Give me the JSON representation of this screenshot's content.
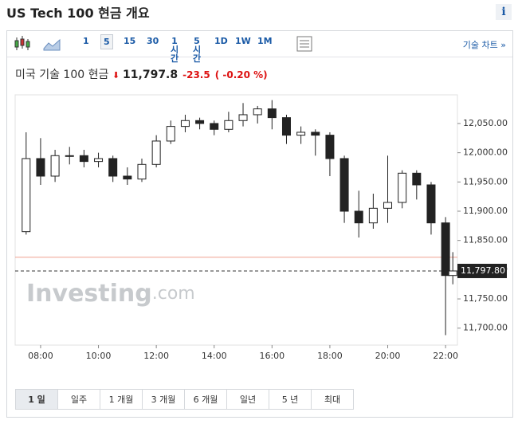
{
  "header": {
    "title": "US Tech 100 현금 개요",
    "info": "i"
  },
  "toolbar": {
    "intervals": [
      "1",
      "5",
      "15",
      "30",
      "1시간",
      "5시간",
      "1D",
      "1W",
      "1M"
    ],
    "active": "5",
    "chart_link": "기술 차트 »"
  },
  "quote": {
    "name": "미국 기술 100 현금",
    "price": "11,797.8",
    "change": "-23.5",
    "change_pct": "( -0.20 %)"
  },
  "chart_data": {
    "type": "candlestick",
    "x": [
      7.5,
      8,
      8.5,
      9,
      9.5,
      10,
      10.5,
      11,
      11.5,
      12,
      12.5,
      13,
      13.5,
      14,
      14.5,
      15,
      15.5,
      16,
      16.5,
      17,
      17.5,
      18,
      18.5,
      19,
      19.5,
      20,
      20.5,
      21,
      21.5,
      22,
      22.25
    ],
    "open": [
      11865,
      11990,
      11960,
      11995,
      11995,
      11985,
      11990,
      11960,
      11955,
      11980,
      12020,
      12045,
      12055,
      12050,
      12040,
      12055,
      12065,
      12075,
      12060,
      12030,
      12035,
      12030,
      11990,
      11900,
      11880,
      11905,
      11915,
      11965,
      11945,
      11880,
      11790
    ],
    "high": [
      12035,
      12025,
      12005,
      12010,
      12005,
      12000,
      11995,
      11975,
      11990,
      12030,
      12055,
      12065,
      12060,
      12055,
      12070,
      12085,
      12080,
      12090,
      12065,
      12045,
      12040,
      12035,
      11995,
      11935,
      11930,
      11995,
      11970,
      11970,
      11950,
      11890,
      11830
    ],
    "low": [
      11860,
      11945,
      11950,
      11980,
      11975,
      11975,
      11950,
      11945,
      11950,
      11975,
      12015,
      12035,
      12040,
      12030,
      12035,
      12045,
      12050,
      12040,
      12015,
      12015,
      11995,
      11960,
      11880,
      11855,
      11870,
      11880,
      11905,
      11920,
      11860,
      11688,
      11775
    ],
    "close": [
      11990,
      11960,
      11995,
      11995,
      11985,
      11990,
      11960,
      11955,
      11980,
      12020,
      12045,
      12055,
      12050,
      12040,
      12055,
      12065,
      12075,
      12060,
      12030,
      12035,
      12030,
      11990,
      11900,
      11880,
      11905,
      11915,
      11965,
      11945,
      11880,
      11790,
      11797.8
    ],
    "color": "#222222",
    "xlim": [
      7.12,
      22.41
    ],
    "ylim": [
      11671,
      12099
    ],
    "xticks": [
      {
        "value": 8,
        "label": "08:00"
      },
      {
        "value": 10,
        "label": "10:00"
      },
      {
        "value": 12,
        "label": "12:00"
      },
      {
        "value": 14,
        "label": "14:00"
      },
      {
        "value": 16,
        "label": "16:00"
      },
      {
        "value": 18,
        "label": "18:00"
      },
      {
        "value": 20,
        "label": "20:00"
      },
      {
        "value": 22,
        "label": "22:00"
      }
    ],
    "yticks": [
      {
        "value": 11700,
        "label": "11,700.00"
      },
      {
        "value": 11750,
        "label": "11,750.00"
      },
      {
        "value": 11800,
        "label": "11,800.00"
      },
      {
        "value": 11850,
        "label": "11,850.00"
      },
      {
        "value": 11900,
        "label": "11,900.00"
      },
      {
        "value": 11950,
        "label": "11,950.00"
      },
      {
        "value": 12000,
        "label": "12,000.00"
      },
      {
        "value": 12050,
        "label": "12,050.00"
      }
    ],
    "last": {
      "value": 11797.8,
      "label": "11,797.80"
    },
    "reference_line": 11821.3
  },
  "watermark": {
    "brand": "Investing",
    "suffix": ".com"
  },
  "ranges": [
    "1 일",
    "일주",
    "1 개월",
    "3 개월",
    "6 개월",
    "일년",
    "5 년",
    "최대"
  ],
  "active_range": "1 일"
}
